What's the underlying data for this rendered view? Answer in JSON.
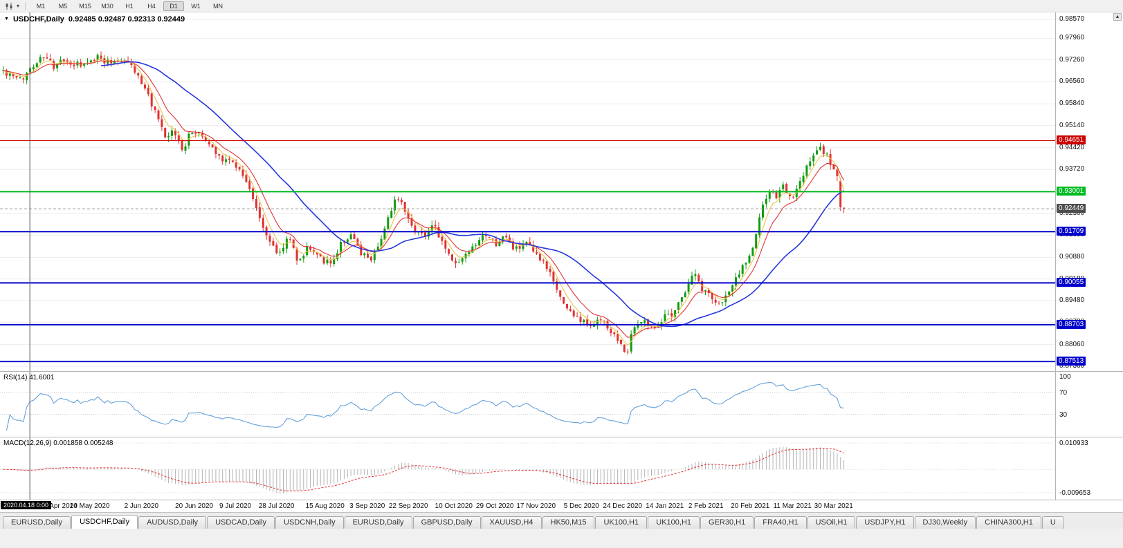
{
  "toolbar": {
    "timeframes": [
      {
        "label": "M1"
      },
      {
        "label": "M5"
      },
      {
        "label": "M15"
      },
      {
        "label": "M30"
      },
      {
        "label": "H1"
      },
      {
        "label": "H4"
      },
      {
        "label": "D1"
      },
      {
        "label": "W1"
      },
      {
        "label": "MN"
      }
    ],
    "active_timeframe": "D1"
  },
  "chart_header": {
    "marker": "▼",
    "title": "USDCHF,Daily",
    "ohlc": "0.92485 0.92487 0.92313 0.92449"
  },
  "chart_data": {
    "type": "candlestick",
    "symbol": "USDCHF",
    "period": "Daily",
    "open": "0.92485",
    "high": "0.92487",
    "low": "0.92313",
    "close": "0.92449",
    "y_range": [
      0.8736,
      0.9857
    ],
    "y_ticks": [
      "0.98570",
      "0.97960",
      "0.97260",
      "0.96560",
      "0.95840",
      "0.95140",
      "0.94420",
      "0.93720",
      "0.93020",
      "0.92300",
      "0.91600",
      "0.90880",
      "0.90180",
      "0.89480",
      "0.88780",
      "0.88060",
      "0.87360"
    ],
    "x_labels": [
      {
        "f": 0.06,
        "text": "Apr 2020"
      },
      {
        "f": 0.085,
        "text": "14 May 2020"
      },
      {
        "f": 0.134,
        "text": "2 Jun 2020"
      },
      {
        "f": 0.184,
        "text": "20 Jun 2020"
      },
      {
        "f": 0.223,
        "text": "9 Jul 2020"
      },
      {
        "f": 0.262,
        "text": "28 Jul 2020"
      },
      {
        "f": 0.308,
        "text": "15 Aug 2020"
      },
      {
        "f": 0.348,
        "text": "3 Sep 2020"
      },
      {
        "f": 0.387,
        "text": "22 Sep 2020"
      },
      {
        "f": 0.43,
        "text": "10 Oct 2020"
      },
      {
        "f": 0.469,
        "text": "29 Oct 2020"
      },
      {
        "f": 0.508,
        "text": "17 Nov 2020"
      },
      {
        "f": 0.551,
        "text": "5 Dec 2020"
      },
      {
        "f": 0.59,
        "text": "24 Dec 2020"
      },
      {
        "f": 0.63,
        "text": "14 Jan 2021"
      },
      {
        "f": 0.669,
        "text": "2 Feb 2021"
      },
      {
        "f": 0.711,
        "text": "20 Feb 2021"
      },
      {
        "f": 0.751,
        "text": "11 Mar 2021"
      },
      {
        "f": 0.79,
        "text": "30 Mar 2021"
      }
    ],
    "num_candles": 250,
    "price_path": [
      [
        0.0,
        0.969
      ],
      [
        0.01,
        0.967
      ],
      [
        0.022,
        0.966
      ],
      [
        0.035,
        0.971
      ],
      [
        0.048,
        0.9738
      ],
      [
        0.06,
        0.9705
      ],
      [
        0.072,
        0.9722
      ],
      [
        0.085,
        0.971
      ],
      [
        0.1,
        0.9708
      ],
      [
        0.112,
        0.974
      ],
      [
        0.125,
        0.9718
      ],
      [
        0.138,
        0.9732
      ],
      [
        0.15,
        0.9722
      ],
      [
        0.16,
        0.9675
      ],
      [
        0.172,
        0.9615
      ],
      [
        0.183,
        0.954
      ],
      [
        0.193,
        0.9468
      ],
      [
        0.202,
        0.9495
      ],
      [
        0.213,
        0.9438
      ],
      [
        0.225,
        0.9498
      ],
      [
        0.237,
        0.9478
      ],
      [
        0.249,
        0.944
      ],
      [
        0.261,
        0.9408
      ],
      [
        0.276,
        0.9392
      ],
      [
        0.29,
        0.9335
      ],
      [
        0.302,
        0.9235
      ],
      [
        0.315,
        0.915
      ],
      [
        0.328,
        0.9095
      ],
      [
        0.339,
        0.9158
      ],
      [
        0.352,
        0.9068
      ],
      [
        0.363,
        0.9128
      ],
      [
        0.376,
        0.909
      ],
      [
        0.389,
        0.9062
      ],
      [
        0.401,
        0.9128
      ],
      [
        0.413,
        0.9162
      ],
      [
        0.425,
        0.91
      ],
      [
        0.437,
        0.9082
      ],
      [
        0.449,
        0.9148
      ],
      [
        0.461,
        0.9232
      ],
      [
        0.469,
        0.9288
      ],
      [
        0.477,
        0.9252
      ],
      [
        0.488,
        0.9182
      ],
      [
        0.5,
        0.916
      ],
      [
        0.512,
        0.9188
      ],
      [
        0.524,
        0.9132
      ],
      [
        0.536,
        0.9062
      ],
      [
        0.548,
        0.9085
      ],
      [
        0.561,
        0.912
      ],
      [
        0.573,
        0.9158
      ],
      [
        0.585,
        0.913
      ],
      [
        0.597,
        0.9156
      ],
      [
        0.609,
        0.9112
      ],
      [
        0.622,
        0.913
      ],
      [
        0.634,
        0.9092
      ],
      [
        0.647,
        0.9052
      ],
      [
        0.659,
        0.8982
      ],
      [
        0.671,
        0.8918
      ],
      [
        0.684,
        0.8892
      ],
      [
        0.696,
        0.8864
      ],
      [
        0.709,
        0.889
      ],
      [
        0.721,
        0.8854
      ],
      [
        0.73,
        0.882
      ],
      [
        0.737,
        0.8806
      ],
      [
        0.742,
        0.877
      ],
      [
        0.748,
        0.8858
      ],
      [
        0.76,
        0.889
      ],
      [
        0.772,
        0.8864
      ],
      [
        0.784,
        0.8888
      ],
      [
        0.796,
        0.891
      ],
      [
        0.808,
        0.8958
      ],
      [
        0.82,
        0.904
      ],
      [
        0.83,
        0.8992
      ],
      [
        0.842,
        0.8962
      ],
      [
        0.853,
        0.8934
      ],
      [
        0.862,
        0.8972
      ],
      [
        0.87,
        0.9004
      ],
      [
        0.878,
        0.9058
      ],
      [
        0.887,
        0.9084
      ],
      [
        0.895,
        0.915
      ],
      [
        0.903,
        0.9256
      ],
      [
        0.911,
        0.93
      ],
      [
        0.919,
        0.928
      ],
      [
        0.927,
        0.9318
      ],
      [
        0.936,
        0.9282
      ],
      [
        0.944,
        0.93
      ],
      [
        0.952,
        0.9358
      ],
      [
        0.961,
        0.94
      ],
      [
        0.969,
        0.9442
      ],
      [
        0.977,
        0.9428
      ],
      [
        0.985,
        0.9392
      ],
      [
        0.993,
        0.9335
      ],
      [
        1.0,
        0.9249
      ]
    ],
    "last_candles": [
      [
        0.9335,
        0.9344,
        0.9238,
        0.925
      ],
      [
        0.92485,
        0.92487,
        0.92313,
        0.92449
      ]
    ],
    "candle_colors": {
      "up": "#119c11",
      "down": "#e03232"
    },
    "moving_averages": [
      {
        "name": "fast",
        "period": 5,
        "type": "ema",
        "color": "#e8c44a"
      },
      {
        "name": "medium",
        "period": 10,
        "type": "ema",
        "color": "#e03232"
      },
      {
        "name": "slow",
        "period": 30,
        "type": "sma",
        "color": "#2336dd"
      }
    ],
    "levels": [
      {
        "price": 0.94651,
        "label": "0.94651",
        "color": "#cc0000",
        "width": 1
      },
      {
        "price": 0.93001,
        "label": "0.93001",
        "color": "#00bb22",
        "width": 2
      },
      {
        "price": 0.91709,
        "label": "0.91709",
        "color": "#0000cc",
        "width": 2
      },
      {
        "price": 0.90055,
        "label": "0.90055",
        "color": "#0000cc",
        "width": 2
      },
      {
        "price": 0.88703,
        "label": "0.88703",
        "color": "#0000cc",
        "width": 2
      },
      {
        "price": 0.87513,
        "label": "0.87513",
        "color": "#0000cc",
        "width": 2
      }
    ],
    "current_price": {
      "value": 0.92449,
      "label": "0.92449",
      "box_color": "#4d4d4d"
    },
    "crosshair": {
      "x_fraction": 0.0283,
      "date_label": "2020.04.18 0:00"
    },
    "indicators": [
      {
        "name": "RSI",
        "label": "RSI(14) 41.6001",
        "period": 14,
        "value": 41.6001,
        "range": [
          0,
          100
        ],
        "level_lines": [
          70,
          30
        ],
        "y_ticks": [
          {
            "value": 100,
            "label": "100"
          },
          {
            "value": 70,
            "label": "70"
          },
          {
            "value": 30,
            "label": "30"
          }
        ],
        "color": "#62a0dc"
      },
      {
        "name": "MACD",
        "label": "MACD(12,26,9) 0.001858 0.005248",
        "params": [
          12,
          26,
          9
        ],
        "values": [
          0.001858,
          0.005248
        ],
        "range": [
          -0.009653,
          0.010933
        ],
        "y_ticks": [
          {
            "value": 0.010933,
            "label": "0.010933"
          },
          {
            "value": -0.009653,
            "label": "-0.009653"
          }
        ],
        "histogram_color": "#b2b2b2",
        "signal_color": "#e03232"
      }
    ]
  },
  "tabs": {
    "active_index": 1,
    "items": [
      "EURUSD,Daily",
      "USDCHF,Daily",
      "AUDUSD,Daily",
      "USDCAD,Daily",
      "USDCNH,Daily",
      "EURUSD,Daily",
      "GBPUSD,Daily",
      "XAUUSD,H4",
      "HK50,M15",
      "UK100,H1",
      "UK100,H1",
      "GER30,H1",
      "FRA40,H1",
      "USOil,H1",
      "USDJPY,H1",
      "DJ30,Weekly",
      "CHINA300,H1",
      "U"
    ]
  }
}
